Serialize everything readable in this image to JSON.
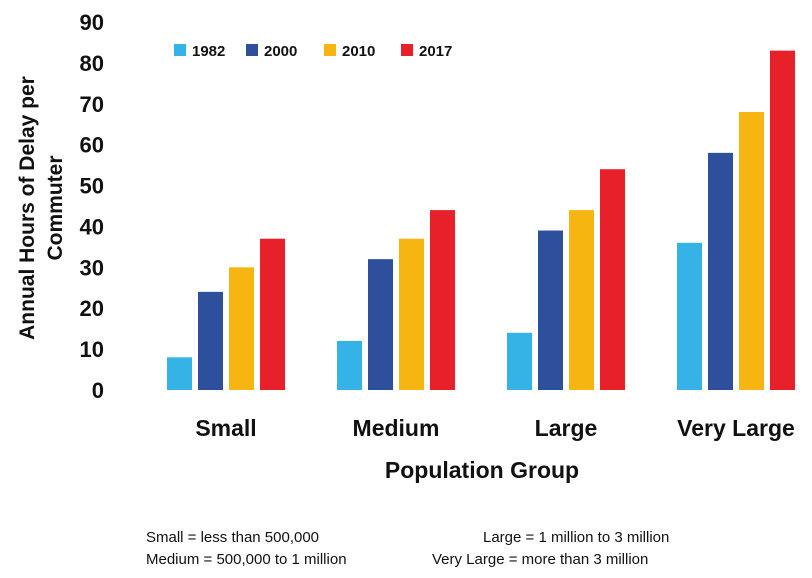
{
  "chart_data": {
    "type": "bar",
    "title": "",
    "xlabel": "Population Group",
    "ylabel": "Annual Hours of Delay per Commuter",
    "ylabel_lines": [
      "Annual Hours of Delay per",
      "Commuter"
    ],
    "categories": [
      "Small",
      "Medium",
      "Large",
      "Very Large"
    ],
    "ylim": [
      0,
      90
    ],
    "yticks": [
      0,
      10,
      20,
      30,
      40,
      50,
      60,
      70,
      80,
      90
    ],
    "grid": false,
    "legend_position": "top-left",
    "series": [
      {
        "name": "1982",
        "color": "#35b3e6",
        "values": [
          8,
          12,
          14,
          36
        ]
      },
      {
        "name": "2000",
        "color": "#2e4f9b",
        "values": [
          24,
          32,
          39,
          58
        ]
      },
      {
        "name": "2010",
        "color": "#f7b512",
        "values": [
          30,
          37,
          44,
          68
        ]
      },
      {
        "name": "2017",
        "color": "#e8202a",
        "values": [
          37,
          44,
          54,
          83
        ]
      }
    ]
  },
  "footnotes": {
    "small": "Small = less than 500,000",
    "medium": "Medium = 500,000 to 1 million",
    "large": "Large = 1 million to 3 million",
    "very_large": "Very Large = more than 3 million"
  }
}
